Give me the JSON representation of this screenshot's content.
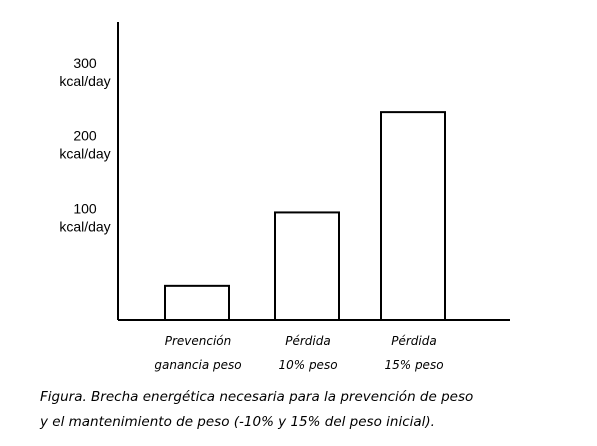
{
  "chart_data": {
    "type": "bar",
    "categories": [
      [
        "Prevención",
        "ganancia peso"
      ],
      [
        "Pérdida",
        "10% peso"
      ],
      [
        "Pérdida",
        "15% peso"
      ]
    ],
    "values": [
      47,
      148,
      286
    ],
    "y_ticks": [
      {
        "value": 100,
        "label": [
          "100",
          "kcal/day"
        ]
      },
      {
        "value": 200,
        "label": [
          "200",
          "kcal/day"
        ]
      },
      {
        "value": 300,
        "label": [
          "300",
          "kcal/day"
        ]
      }
    ],
    "ylim": [
      0,
      410
    ],
    "grid": false,
    "bar_fill": "#ffffff",
    "bar_stroke": "#000000",
    "axis_color": "#000000"
  },
  "caption": {
    "line1": "Figura. Brecha energética necesaria para la prevención de peso",
    "line2": "y el mantenimiento de peso (-10% y 15% del peso inicial)."
  }
}
